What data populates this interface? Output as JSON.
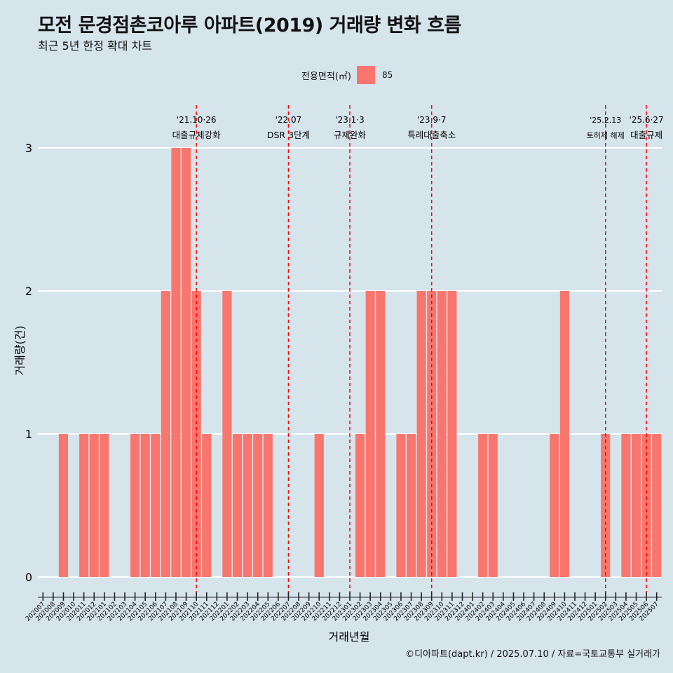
{
  "title": "모전 문경점촌코아루 아파트(2019) 거래량 변화 흐름",
  "subtitle": "최근 5년 한정 확대 차트",
  "legend": {
    "title": "전용면적(㎡)",
    "item": "85",
    "color": "#f8766d"
  },
  "caption": "©디아파트(dapt.kr) / 2025.07.10 / 자료=국토교통부 실거래가",
  "chart_data": {
    "type": "bar",
    "xlabel": "거래년월",
    "ylabel": "거래량(건)",
    "ylim": [
      0,
      3
    ],
    "yticks": [
      0,
      1,
      2,
      3
    ],
    "grid": true,
    "legend_position": "top",
    "bar_color": "#f8766d",
    "background": "#d6e4ec",
    "categories": [
      "202007",
      "202008",
      "202009",
      "202010",
      "202011",
      "202012",
      "202101",
      "202102",
      "202103",
      "202104",
      "202105",
      "202106",
      "202107",
      "202108",
      "202109",
      "202110",
      "202111",
      "202112",
      "202201",
      "202202",
      "202203",
      "202204",
      "202205",
      "202206",
      "202207",
      "202208",
      "202209",
      "202210",
      "202211",
      "202212",
      "202301",
      "202302",
      "202303",
      "202304",
      "202305",
      "202306",
      "202307",
      "202308",
      "202309",
      "202310",
      "202311",
      "202312",
      "202401",
      "202402",
      "202403",
      "202404",
      "202405",
      "202406",
      "202407",
      "202408",
      "202409",
      "202410",
      "202411",
      "202412",
      "202501",
      "202502",
      "202503",
      "202504",
      "202505",
      "202506",
      "202507"
    ],
    "series": [
      {
        "values": [
          0,
          0,
          1,
          0,
          1,
          1,
          1,
          0,
          0,
          1,
          1,
          1,
          2,
          3,
          3,
          2,
          1,
          0,
          2,
          1,
          1,
          1,
          1,
          0,
          0,
          0,
          0,
          1,
          0,
          0,
          0,
          1,
          2,
          2,
          0,
          1,
          1,
          2,
          2,
          2,
          2,
          0,
          0,
          1,
          1,
          0,
          0,
          0,
          0,
          0,
          1,
          2,
          0,
          0,
          0,
          1,
          0,
          1,
          1,
          1,
          1
        ]
      }
    ],
    "annotations": [
      {
        "x": "202110",
        "date": "'21.10·26",
        "label": "대출규제강화"
      },
      {
        "x": "202207",
        "date": "'22.07",
        "label": "DSR 3단계"
      },
      {
        "x": "202301",
        "date": "'23.1·3",
        "label": "규제완화"
      },
      {
        "x": "202309",
        "date": "'23.9·7",
        "label": "특례대출축소"
      },
      {
        "x": "202502",
        "date": "'25.2.13",
        "label": "토허제 해제"
      },
      {
        "x": "202506",
        "date": "'25.6·27",
        "label": "대출규제"
      }
    ]
  }
}
